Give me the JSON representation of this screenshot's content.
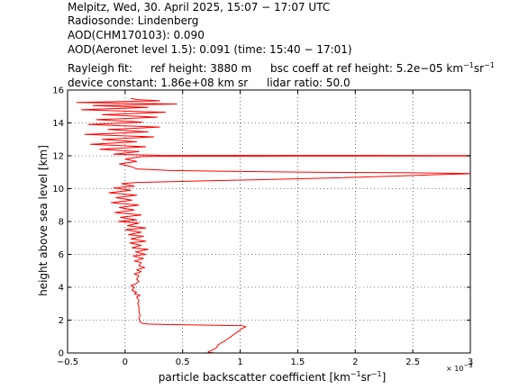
{
  "header": {
    "line1": "Melpitz, Wed, 30. April 2025, 15:07 − 17:07 UTC",
    "line2": "Radiosonde: Lindenberg",
    "line3": "AOD(CHM170103): 0.090",
    "line4": "AOD(Aeronet level 1.5): 0.091   (time: 15:40 − 17:01)",
    "rayleigh_label": "Rayleigh fit:",
    "ref_height": "ref height: 3880 m",
    "bsc_prefix": "bsc coeff at ref height: 5.2e−05 km",
    "unit_exp1": "−1",
    "unit_sr": "sr",
    "unit_exp2": "−1",
    "device_constant": "device constant: 1.86e+08 km sr",
    "lidar_ratio": "lidar ratio: 50.0"
  },
  "chart_data": {
    "type": "line",
    "xlabel": "particle backscatter coefficient [km⁻¹sr⁻¹]",
    "xlabel_parts": {
      "prefix": "particle backscatter coefficient [km",
      "exp1": "−1",
      "mid": "sr",
      "exp2": "−1",
      "suffix": "]"
    },
    "ylabel": "height above sea level [km]",
    "x_multiplier_text": "× 10",
    "x_multiplier_exp": "−3",
    "xlim": [
      -0.5,
      3
    ],
    "ylim": [
      0,
      16
    ],
    "x_ticks": [
      -0.5,
      0,
      0.5,
      1,
      1.5,
      2,
      2.5,
      3
    ],
    "x_tick_labels": [
      "−0.5",
      "0",
      "0.5",
      "1",
      "1.5",
      "2",
      "2.5",
      "3"
    ],
    "y_ticks": [
      0,
      2,
      4,
      6,
      8,
      10,
      12,
      14,
      16
    ],
    "y_tick_labels": [
      "0",
      "2",
      "4",
      "6",
      "8",
      "10",
      "12",
      "14",
      "16"
    ],
    "grid": true,
    "series": [
      {
        "color": "#ff0000",
        "points": [
          [
            0.78,
            0.0
          ],
          [
            0.74,
            0.03
          ],
          [
            0.72,
            0.06
          ],
          [
            0.73,
            0.1
          ],
          [
            0.75,
            0.15
          ],
          [
            0.77,
            0.22
          ],
          [
            0.79,
            0.3
          ],
          [
            0.8,
            0.4
          ],
          [
            0.81,
            0.5
          ],
          [
            0.83,
            0.6
          ],
          [
            0.86,
            0.7
          ],
          [
            0.88,
            0.8
          ],
          [
            0.9,
            0.9
          ],
          [
            0.92,
            1.0
          ],
          [
            0.94,
            1.1
          ],
          [
            0.96,
            1.2
          ],
          [
            0.98,
            1.3
          ],
          [
            1.0,
            1.4
          ],
          [
            1.02,
            1.5
          ],
          [
            1.05,
            1.6
          ],
          [
            1.02,
            1.66
          ],
          [
            0.8,
            1.69
          ],
          [
            0.55,
            1.71
          ],
          [
            0.35,
            1.73
          ],
          [
            0.2,
            1.76
          ],
          [
            0.15,
            1.8
          ],
          [
            0.13,
            1.9
          ],
          [
            0.12,
            2.1
          ],
          [
            0.13,
            2.3
          ],
          [
            0.12,
            2.5
          ],
          [
            0.12,
            2.8
          ],
          [
            0.11,
            3.0
          ],
          [
            0.12,
            3.2
          ],
          [
            0.1,
            3.4
          ],
          [
            0.13,
            3.5
          ],
          [
            0.08,
            3.6
          ],
          [
            0.1,
            3.7
          ],
          [
            0.06,
            3.8
          ],
          [
            0.08,
            4.0
          ],
          [
            0.05,
            4.1
          ],
          [
            0.09,
            4.2
          ],
          [
            0.12,
            4.35
          ],
          [
            0.1,
            4.5
          ],
          [
            0.12,
            4.7
          ],
          [
            0.08,
            4.8
          ],
          [
            0.14,
            4.95
          ],
          [
            0.1,
            5.05
          ],
          [
            0.17,
            5.2
          ],
          [
            0.12,
            5.3
          ],
          [
            0.14,
            5.5
          ],
          [
            0.08,
            5.6
          ],
          [
            0.16,
            5.75
          ],
          [
            0.07,
            5.9
          ],
          [
            0.18,
            6.0
          ],
          [
            0.09,
            6.15
          ],
          [
            0.2,
            6.3
          ],
          [
            0.06,
            6.4
          ],
          [
            0.14,
            6.55
          ],
          [
            0.04,
            6.7
          ],
          [
            0.18,
            6.8
          ],
          [
            0.05,
            6.95
          ],
          [
            0.16,
            7.1
          ],
          [
            0.03,
            7.2
          ],
          [
            0.14,
            7.35
          ],
          [
            0.0,
            7.5
          ],
          [
            0.18,
            7.6
          ],
          [
            0.02,
            7.75
          ],
          [
            0.12,
            7.9
          ],
          [
            -0.06,
            8.0
          ],
          [
            0.1,
            8.1
          ],
          [
            -0.04,
            8.25
          ],
          [
            0.14,
            8.4
          ],
          [
            -0.09,
            8.55
          ],
          [
            0.08,
            8.7
          ],
          [
            -0.05,
            8.85
          ],
          [
            0.12,
            9.0
          ],
          [
            -0.12,
            9.15
          ],
          [
            0.06,
            9.3
          ],
          [
            -0.08,
            9.45
          ],
          [
            0.1,
            9.6
          ],
          [
            -0.14,
            9.75
          ],
          [
            0.05,
            9.9
          ],
          [
            -0.1,
            10.05
          ],
          [
            0.08,
            10.15
          ],
          [
            -0.03,
            10.3
          ],
          [
            0.1,
            10.38
          ],
          [
            0.6,
            10.46
          ],
          [
            1.2,
            10.55
          ],
          [
            1.8,
            10.65
          ],
          [
            2.3,
            10.75
          ],
          [
            2.7,
            10.85
          ],
          [
            2.95,
            10.9
          ],
          [
            3.0,
            10.92
          ],
          [
            2.4,
            10.97
          ],
          [
            1.6,
            11.0
          ],
          [
            0.9,
            11.05
          ],
          [
            0.4,
            11.1
          ],
          [
            0.1,
            11.2
          ],
          [
            0.05,
            11.35
          ],
          [
            -0.05,
            11.5
          ],
          [
            0.1,
            11.65
          ],
          [
            0.0,
            11.8
          ],
          [
            0.15,
            11.96
          ],
          [
            1.5,
            11.98
          ],
          [
            3.0,
            11.99
          ],
          [
            3.0,
            12.01
          ],
          [
            0.3,
            12.03
          ],
          [
            -0.1,
            12.1
          ],
          [
            0.12,
            12.25
          ],
          [
            -0.22,
            12.4
          ],
          [
            0.18,
            12.55
          ],
          [
            -0.3,
            12.7
          ],
          [
            0.1,
            12.85
          ],
          [
            -0.2,
            13.0
          ],
          [
            0.25,
            13.15
          ],
          [
            -0.35,
            13.3
          ],
          [
            0.2,
            13.45
          ],
          [
            -0.15,
            13.6
          ],
          [
            0.3,
            13.75
          ],
          [
            -0.32,
            13.9
          ],
          [
            0.15,
            14.05
          ],
          [
            -0.25,
            14.2
          ],
          [
            0.28,
            14.35
          ],
          [
            -0.2,
            14.5
          ],
          [
            0.35,
            14.65
          ],
          [
            -0.38,
            14.8
          ],
          [
            0.2,
            14.95
          ],
          [
            -0.28,
            15.05
          ],
          [
            0.45,
            15.15
          ],
          [
            -0.42,
            15.25
          ],
          [
            0.3,
            15.35
          ],
          [
            0.1,
            15.42
          ],
          [
            0.05,
            15.5
          ]
        ]
      }
    ]
  }
}
